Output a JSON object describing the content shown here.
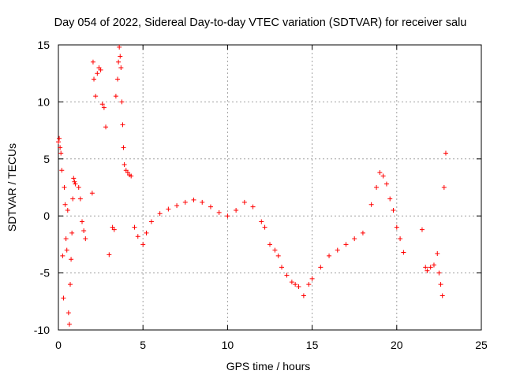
{
  "chart_data": {
    "type": "scatter",
    "title": "Day 054 of 2022, Sidereal Day-to-day VTEC variation (SDTVAR) for receiver salu",
    "xlabel": "GPS time / hours",
    "ylabel": "SDTVAR / TECUs",
    "xlim": [
      0,
      25
    ],
    "ylim": [
      -10,
      15
    ],
    "xticks": [
      0,
      5,
      10,
      15,
      20,
      25
    ],
    "yticks": [
      -10,
      -5,
      0,
      5,
      10,
      15
    ],
    "grid": true,
    "marker": "plus",
    "series": [
      {
        "name": "SDTVAR",
        "color": "#ff0000",
        "x": [
          0.0,
          0.05,
          0.1,
          0.15,
          0.2,
          0.25,
          0.3,
          0.35,
          0.4,
          0.45,
          0.5,
          0.55,
          0.6,
          0.65,
          0.7,
          0.75,
          0.8,
          0.85,
          0.9,
          0.95,
          1.0,
          1.2,
          1.3,
          1.4,
          1.5,
          1.6,
          2.0,
          2.05,
          2.1,
          2.2,
          2.3,
          2.4,
          2.5,
          2.6,
          2.7,
          2.8,
          3.0,
          3.2,
          3.3,
          3.4,
          3.5,
          3.55,
          3.6,
          3.65,
          3.7,
          3.75,
          3.8,
          3.85,
          3.9,
          4.0,
          4.1,
          4.2,
          4.3,
          4.5,
          4.7,
          5.0,
          5.2,
          5.5,
          6.0,
          6.5,
          7.0,
          7.5,
          8.0,
          8.5,
          9.0,
          9.5,
          10.0,
          10.5,
          11.0,
          11.5,
          12.0,
          12.2,
          12.5,
          12.8,
          13.0,
          13.2,
          13.5,
          13.8,
          14.0,
          14.2,
          14.5,
          14.8,
          15.0,
          15.5,
          16.0,
          16.5,
          17.0,
          17.5,
          18.0,
          18.5,
          18.8,
          19.0,
          19.2,
          19.4,
          19.6,
          19.8,
          20.0,
          20.2,
          20.4,
          21.5,
          21.7,
          21.8,
          22.0,
          22.2,
          22.4,
          22.5,
          22.6,
          22.7,
          22.8,
          22.9
        ],
        "y": [
          6.5,
          6.8,
          6.0,
          5.5,
          4.0,
          -3.5,
          -7.2,
          2.5,
          1.0,
          -2.0,
          -3.0,
          0.5,
          -8.5,
          -9.5,
          -6.0,
          -3.8,
          -1.5,
          1.5,
          3.3,
          3.0,
          2.8,
          2.5,
          1.5,
          -0.5,
          -1.3,
          -2.0,
          2.0,
          13.5,
          12.0,
          10.5,
          12.5,
          13.0,
          12.8,
          9.8,
          9.5,
          7.8,
          -3.4,
          -1.0,
          -1.2,
          10.5,
          12.0,
          13.5,
          14.8,
          14.0,
          13.0,
          10.0,
          8.0,
          6.0,
          4.5,
          4.0,
          3.8,
          3.6,
          3.5,
          -1.0,
          -1.8,
          -2.5,
          -1.5,
          -0.5,
          0.2,
          0.6,
          0.9,
          1.2,
          1.4,
          1.2,
          0.8,
          0.3,
          0.0,
          0.5,
          1.2,
          0.8,
          -0.5,
          -1.0,
          -2.5,
          -3.0,
          -3.5,
          -4.5,
          -5.2,
          -5.8,
          -6.0,
          -6.2,
          -7.0,
          -6.0,
          -5.5,
          -4.5,
          -3.5,
          -3.0,
          -2.5,
          -2.0,
          -1.5,
          1.0,
          2.5,
          3.8,
          3.5,
          2.8,
          1.5,
          0.5,
          -1.0,
          -2.0,
          -3.2,
          -1.2,
          -4.5,
          -4.8,
          -4.5,
          -4.3,
          -3.3,
          -5.0,
          -6.0,
          -7.0,
          2.5,
          5.5
        ]
      }
    ]
  }
}
